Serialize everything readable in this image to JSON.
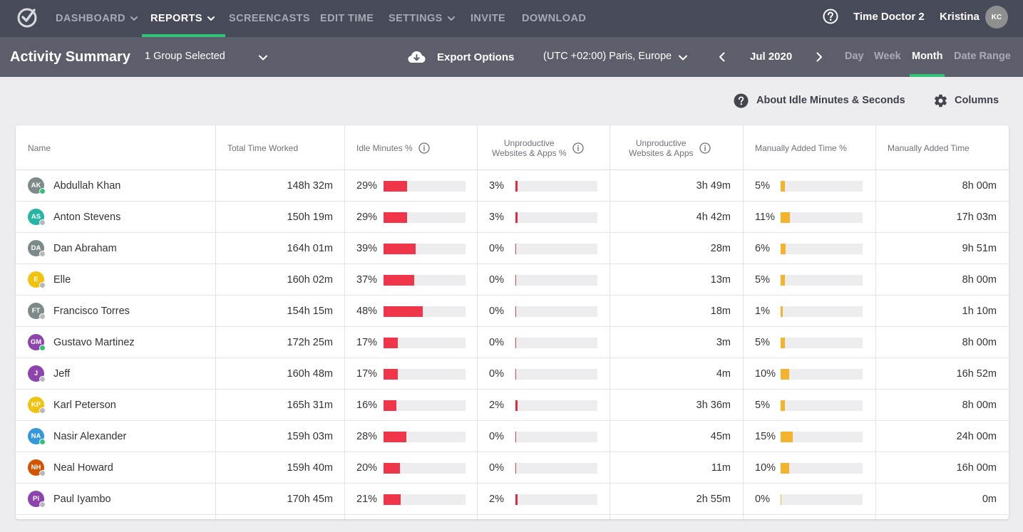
{
  "nav": {
    "items": [
      {
        "label": "DASHBOARD",
        "caret": true,
        "active": false
      },
      {
        "label": "REPORTS",
        "caret": true,
        "active": true
      },
      {
        "label": "SCREENCASTS",
        "caret": false,
        "active": false
      },
      {
        "label": "EDIT TIME",
        "caret": false,
        "active": false
      },
      {
        "label": "SETTINGS",
        "caret": true,
        "active": false
      },
      {
        "label": "INVITE",
        "caret": false,
        "active": false
      },
      {
        "label": "DOWNLOAD",
        "caret": false,
        "active": false
      }
    ],
    "product": "Time Doctor 2",
    "user_name": "Kristina",
    "user_initials": "KC"
  },
  "subheader": {
    "title": "Activity Summary",
    "group_selector": "1 Group Selected",
    "export_label": "Export Options",
    "timezone": "(UTC +02:00) Paris, Europe",
    "current_period": "Jul 2020",
    "periods": [
      {
        "label": "Day",
        "active": false
      },
      {
        "label": "Week",
        "active": false
      },
      {
        "label": "Month",
        "active": true
      },
      {
        "label": "Date Range",
        "active": false
      }
    ]
  },
  "toolbar": {
    "about_label": "About Idle Minutes & Seconds",
    "columns_label": "Columns"
  },
  "table": {
    "headers": {
      "name": "Name",
      "total_time": "Total Time Worked",
      "idle_pct": "Idle Minutes %",
      "unprod_pct_line1": "Unproductive",
      "unprod_pct_line2": "Websites & Apps %",
      "unprod_line1": "Unproductive",
      "unprod_line2": "Websites & Apps",
      "manual_pct": "Manually Added Time %",
      "manual": "Manually Added Time"
    },
    "colors": {
      "idle_bar": "#f0344a",
      "unprod_bar": "#e8283c",
      "manual_bar": "#f3b42c",
      "online": "#2fc477",
      "offline": "#b8b9bf"
    },
    "rows": [
      {
        "initials": "AK",
        "avatar_color": "#7d8a8a",
        "online": true,
        "name": "Abdullah Khan",
        "total": "148h 32m",
        "idle": "29%",
        "idle_v": 29,
        "unprod_pct": "3%",
        "unprod_pct_v": 3,
        "unprod": "3h 49m",
        "manual_pct": "5%",
        "manual_pct_v": 5,
        "manual": "8h 00m"
      },
      {
        "initials": "AS",
        "avatar_color": "#26b5a5",
        "online": false,
        "name": "Anton Stevens",
        "total": "150h 19m",
        "idle": "29%",
        "idle_v": 29,
        "unprod_pct": "3%",
        "unprod_pct_v": 3,
        "unprod": "4h 42m",
        "manual_pct": "11%",
        "manual_pct_v": 11,
        "manual": "17h 03m"
      },
      {
        "initials": "DA",
        "avatar_color": "#7d8a8a",
        "online": false,
        "name": "Dan Abraham",
        "total": "164h 01m",
        "idle": "39%",
        "idle_v": 39,
        "unprod_pct": "0%",
        "unprod_pct_v": 0,
        "unprod": "28m",
        "manual_pct": "6%",
        "manual_pct_v": 6,
        "manual": "9h 51m"
      },
      {
        "initials": "E",
        "avatar_color": "#f0c30f",
        "online": false,
        "name": "Elle",
        "total": "160h 02m",
        "idle": "37%",
        "idle_v": 37,
        "unprod_pct": "0%",
        "unprod_pct_v": 0,
        "unprod": "13m",
        "manual_pct": "5%",
        "manual_pct_v": 5,
        "manual": "8h 00m"
      },
      {
        "initials": "FT",
        "avatar_color": "#7d8a8a",
        "online": false,
        "name": "Francisco Torres",
        "total": "154h 15m",
        "idle": "48%",
        "idle_v": 48,
        "unprod_pct": "0%",
        "unprod_pct_v": 0,
        "unprod": "18m",
        "manual_pct": "1%",
        "manual_pct_v": 1,
        "manual": "1h 10m"
      },
      {
        "initials": "GM",
        "avatar_color": "#8e44ad",
        "online": true,
        "name": "Gustavo Martinez",
        "total": "172h 25m",
        "idle": "17%",
        "idle_v": 17,
        "unprod_pct": "0%",
        "unprod_pct_v": 0,
        "unprod": "3m",
        "manual_pct": "5%",
        "manual_pct_v": 5,
        "manual": "8h 00m"
      },
      {
        "initials": "J",
        "avatar_color": "#8e44ad",
        "online": false,
        "name": "Jeff",
        "total": "160h 48m",
        "idle": "17%",
        "idle_v": 17,
        "unprod_pct": "0%",
        "unprod_pct_v": 0,
        "unprod": "4m",
        "manual_pct": "10%",
        "manual_pct_v": 10,
        "manual": "16h 52m"
      },
      {
        "initials": "KP",
        "avatar_color": "#f0c30f",
        "online": false,
        "name": "Karl Peterson",
        "total": "165h 31m",
        "idle": "16%",
        "idle_v": 16,
        "unprod_pct": "2%",
        "unprod_pct_v": 2,
        "unprod": "3h 36m",
        "manual_pct": "5%",
        "manual_pct_v": 5,
        "manual": "8h 00m"
      },
      {
        "initials": "NA",
        "avatar_color": "#3498db",
        "online": true,
        "name": "Nasir Alexander",
        "total": "159h 03m",
        "idle": "28%",
        "idle_v": 28,
        "unprod_pct": "0%",
        "unprod_pct_v": 0,
        "unprod": "45m",
        "manual_pct": "15%",
        "manual_pct_v": 15,
        "manual": "24h 00m"
      },
      {
        "initials": "NH",
        "avatar_color": "#d35400",
        "online": false,
        "name": "Neal Howard",
        "total": "159h 40m",
        "idle": "20%",
        "idle_v": 20,
        "unprod_pct": "0%",
        "unprod_pct_v": 0,
        "unprod": "11m",
        "manual_pct": "10%",
        "manual_pct_v": 10,
        "manual": "16h 00m"
      },
      {
        "initials": "PI",
        "avatar_color": "#8e44ad",
        "online": false,
        "name": "Paul Iyambo",
        "total": "170h 45m",
        "idle": "21%",
        "idle_v": 21,
        "unprod_pct": "2%",
        "unprod_pct_v": 2,
        "unprod": "2h 55m",
        "manual_pct": "0%",
        "manual_pct_v": 0,
        "manual": "0m"
      }
    ]
  }
}
